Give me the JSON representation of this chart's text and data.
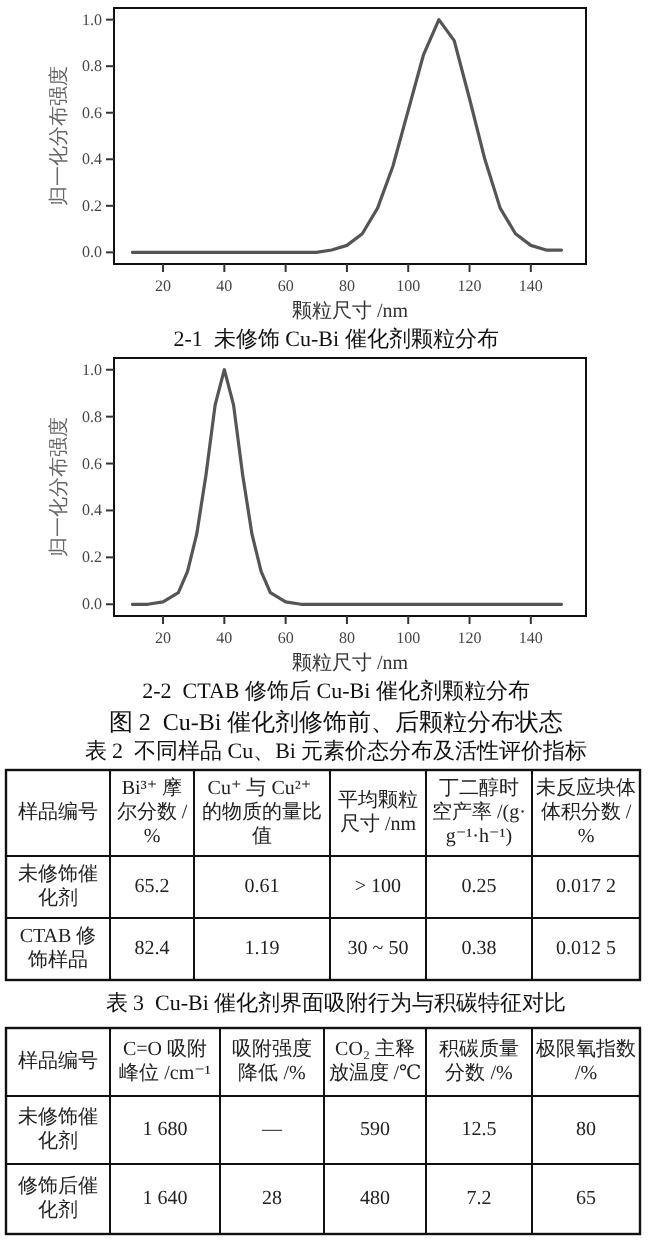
{
  "chart_data": [
    {
      "type": "line",
      "title": "2-1  未修饰 Cu-Bi 催化剂颗粒分布",
      "xlabel": "颗粒尺寸 /nm",
      "ylabel": "归一化分布强度",
      "xlim": [
        4,
        158
      ],
      "ylim": [
        -0.05,
        1.05
      ],
      "xticks": [
        20,
        40,
        60,
        80,
        100,
        120,
        140
      ],
      "yticks": [
        {
          "value": 0,
          "label": "0.0"
        },
        {
          "value": 0.2,
          "label": "0.2"
        },
        {
          "value": 0.4,
          "label": "0.4"
        },
        {
          "value": 0.6,
          "label": "0.6"
        },
        {
          "value": 0.8,
          "label": "0.8"
        },
        {
          "value": 1,
          "label": "1.0"
        }
      ],
      "series": [
        {
          "color": "#555555",
          "x": [
            10,
            20,
            30,
            40,
            50,
            60,
            70,
            75,
            80,
            85,
            90,
            95,
            100,
            105,
            110,
            115,
            120,
            125,
            130,
            135,
            140,
            145,
            150
          ],
          "values": [
            0,
            0,
            0,
            0,
            0,
            0,
            0,
            0.01,
            0.03,
            0.08,
            0.19,
            0.37,
            0.61,
            0.85,
            1.0,
            0.91,
            0.66,
            0.4,
            0.19,
            0.08,
            0.03,
            0.01,
            0.01
          ]
        }
      ]
    },
    {
      "type": "line",
      "title": "2-2  CTAB 修饰后 Cu-Bi 催化剂颗粒分布",
      "xlabel": "颗粒尺寸 /nm",
      "ylabel": "归一化分布强度",
      "xlim": [
        4,
        158
      ],
      "ylim": [
        -0.05,
        1.05
      ],
      "xticks": [
        20,
        40,
        60,
        80,
        100,
        120,
        140
      ],
      "yticks": [
        {
          "value": 0,
          "label": "0.0"
        },
        {
          "value": 0.2,
          "label": "0.2"
        },
        {
          "value": 0.4,
          "label": "0.4"
        },
        {
          "value": 0.6,
          "label": "0.6"
        },
        {
          "value": 0.8,
          "label": "0.8"
        },
        {
          "value": 1,
          "label": "1.0"
        }
      ],
      "annotations": [
        "图 2  Cu-Bi 催化剂修饰前、后颗粒分布状态"
      ],
      "series": [
        {
          "color": "#555555",
          "x": [
            10,
            15,
            20,
            25,
            28,
            31,
            34,
            37,
            40,
            43,
            46,
            49,
            52,
            55,
            60,
            65,
            80,
            100,
            120,
            150
          ],
          "values": [
            0,
            0,
            0.01,
            0.05,
            0.14,
            0.3,
            0.55,
            0.85,
            1.0,
            0.85,
            0.55,
            0.3,
            0.14,
            0.05,
            0.01,
            0,
            0,
            0,
            0,
            0
          ]
        }
      ]
    },
    {
      "type": "other",
      "title": "表 2  不同样品 Cu、Bi 元素价态分布及活性评价指标",
      "categories": [
        "样品编号",
        "Bi³⁺ 摩尔分数 /%",
        "Cu⁺ 与 Cu²⁺ 的物质的量比值",
        "平均颗粒尺寸 /nm",
        "丁二醇时空产率 /(g·g⁻¹·h⁻¹)",
        "未反应块体体积分数 /%"
      ],
      "y_categories": [
        "未修饰催化剂",
        "CTAB 修饰样品"
      ],
      "cell_labels": [
        [
          "65.2",
          "0.61",
          "> 100",
          "0.25",
          "0.017 2"
        ],
        [
          "82.4",
          "1.19",
          "30 ~ 50",
          "0.38",
          "0.012 5"
        ]
      ]
    },
    {
      "type": "other",
      "title": "表 3  Cu-Bi 催化剂界面吸附行为与积碳特征对比",
      "categories": [
        "样品编号",
        "C=O 吸附峰位 /cm⁻¹",
        "吸附强度降低 /%",
        "CO₂ 主释放温度 /℃",
        "积碳质量分数 /%",
        "极限氧指数 /%"
      ],
      "y_categories": [
        "未修饰催化剂",
        "修饰后催化剂"
      ],
      "cell_labels": [
        [
          "1 680",
          "—",
          "590",
          "12.5",
          "80"
        ],
        [
          "1 640",
          "28",
          "480",
          "7.2",
          "65"
        ]
      ]
    }
  ]
}
